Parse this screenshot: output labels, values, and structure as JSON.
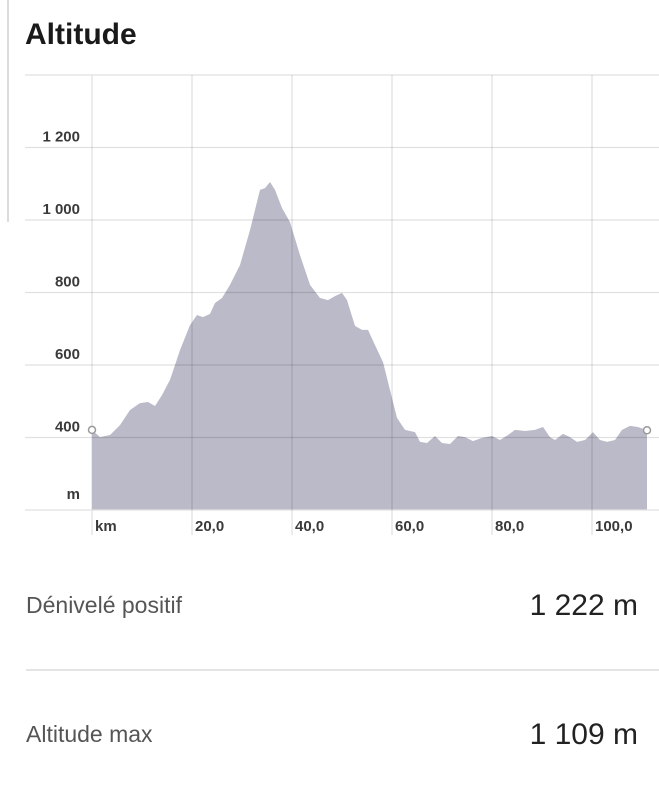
{
  "chart_data": {
    "type": "area",
    "title": "Altitude",
    "x_label": "km",
    "y_label": "m",
    "x": [
      0,
      1.6,
      3.6,
      5.6,
      7.6,
      9.6,
      11.2,
      12.6,
      14,
      15.6,
      17.6,
      19.6,
      21,
      22.2,
      23.6,
      24.6,
      26,
      27.6,
      29.6,
      31.6,
      33.6,
      34.6,
      35.6,
      36.6,
      38,
      39.6,
      41.6,
      43.6,
      45.6,
      47.2,
      48.6,
      50,
      51,
      52.6,
      54,
      55.2,
      56.6,
      58.2,
      59.6,
      61,
      62.6,
      64.6,
      65.6,
      67,
      68.6,
      70,
      71.6,
      73.2,
      74.6,
      76.2,
      78,
      80,
      81.6,
      83.2,
      84.6,
      86.6,
      88.6,
      90.2,
      91.6,
      92.6,
      94.2,
      95.6,
      97,
      98.6,
      100.2,
      101.6,
      103,
      104.6,
      106,
      107.6,
      109.2,
      111
    ],
    "y": [
      421,
      401,
      407,
      434,
      476,
      495,
      498,
      487,
      517,
      559,
      641,
      710,
      738,
      732,
      741,
      771,
      785,
      821,
      876,
      972,
      1083,
      1088,
      1105,
      1083,
      1033,
      994,
      903,
      821,
      785,
      779,
      790,
      799,
      779,
      708,
      697,
      697,
      655,
      608,
      531,
      454,
      421,
      415,
      388,
      385,
      404,
      385,
      382,
      404,
      401,
      390,
      399,
      404,
      393,
      407,
      421,
      418,
      421,
      429,
      401,
      393,
      410,
      401,
      388,
      393,
      415,
      393,
      388,
      393,
      421,
      432,
      429,
      420
    ],
    "color": "#babac8",
    "xlim": [
      0,
      111
    ],
    "ylim": [
      200,
      1400
    ],
    "xticks": [
      {
        "value": 20,
        "label": "20,0"
      },
      {
        "value": 40,
        "label": "40,0"
      },
      {
        "value": 60,
        "label": "60,0"
      },
      {
        "value": 80,
        "label": "80,0"
      },
      {
        "value": 100,
        "label": "100,0"
      }
    ],
    "yticks": [
      400,
      600,
      800,
      {
        "value": 1000,
        "label": "1 000"
      },
      {
        "value": 1200,
        "label": "1 200"
      }
    ],
    "grid": true
  },
  "stats": [
    {
      "label": "Dénivelé positif",
      "value": "1 222 m"
    },
    {
      "label": "Altitude max",
      "value": "1 109 m"
    }
  ]
}
